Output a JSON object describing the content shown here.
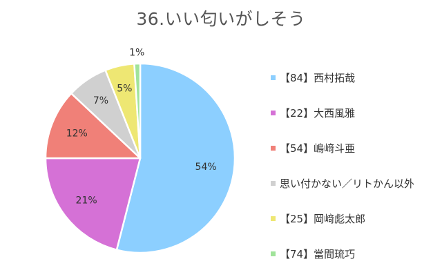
{
  "chart_data": {
    "type": "pie",
    "title": "36.いい匂いがしそう",
    "categories": [
      "【84】西村拓哉",
      "【22】大西風雅",
      "【54】嶋﨑斗亜",
      "思い付かない／リトかん以外",
      "【25】岡﨑彪太郎",
      "【74】當間琉巧"
    ],
    "values": [
      54,
      21,
      12,
      7,
      5,
      1
    ],
    "labels": [
      "54%",
      "21%",
      "12%",
      "7%",
      "5%",
      "1%"
    ],
    "colors": [
      "#8ccfff",
      "#d571d6",
      "#f08078",
      "#d0d0d0",
      "#eee773",
      "#a0e39a"
    ],
    "legend_position": "right"
  }
}
